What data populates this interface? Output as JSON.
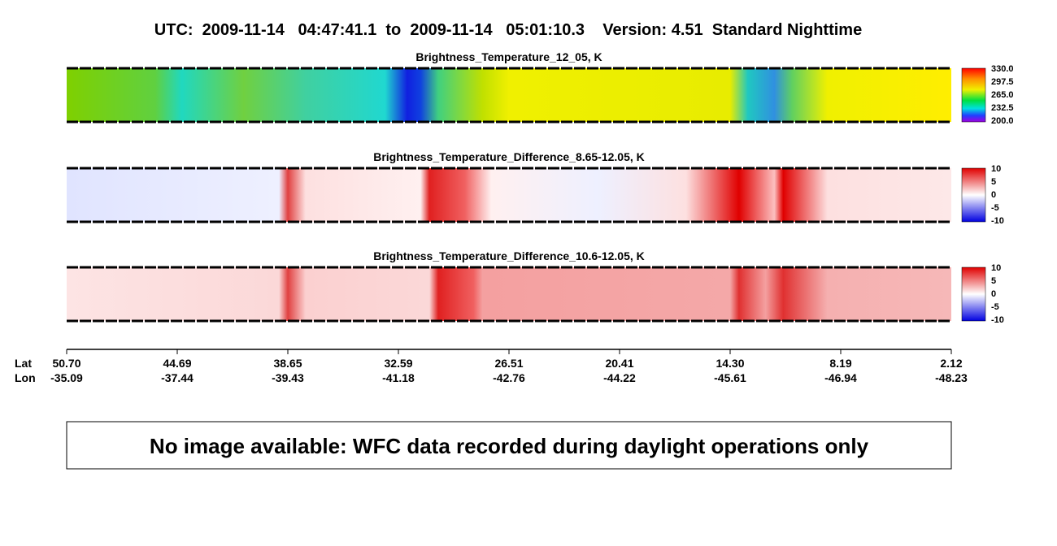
{
  "header": {
    "title": "UTC:  2009-11-14   04:47:41.1  to  2009-11-14   05:01:10.3    Version: 4.51  Standard Nighttime"
  },
  "panels": [
    {
      "title": "Brightness_Temperature_12_05, K",
      "colorbar": [
        "330.0",
        "297.5",
        "265.0",
        "232.5",
        "200.0"
      ]
    },
    {
      "title": "Brightness_Temperature_Difference_8.65-12.05, K",
      "colorbar": [
        "10",
        "5",
        "0",
        "-5",
        "-10"
      ]
    },
    {
      "title": "Brightness_Temperature_Difference_10.6-12.05, K",
      "colorbar": [
        "10",
        "5",
        "0",
        "-5",
        "-10"
      ]
    }
  ],
  "axis": {
    "lat_label": "Lat",
    "lon_label": "Lon",
    "lat": [
      "50.70",
      "44.69",
      "38.65",
      "32.59",
      "26.51",
      "20.41",
      "14.30",
      "8.19",
      "2.12"
    ],
    "lon": [
      "-35.09",
      "-37.44",
      "-39.43",
      "-41.18",
      "-42.76",
      "-44.22",
      "-45.61",
      "-46.94",
      "-48.23"
    ]
  },
  "notice": "No image available: WFC data recorded during daylight operations only"
}
